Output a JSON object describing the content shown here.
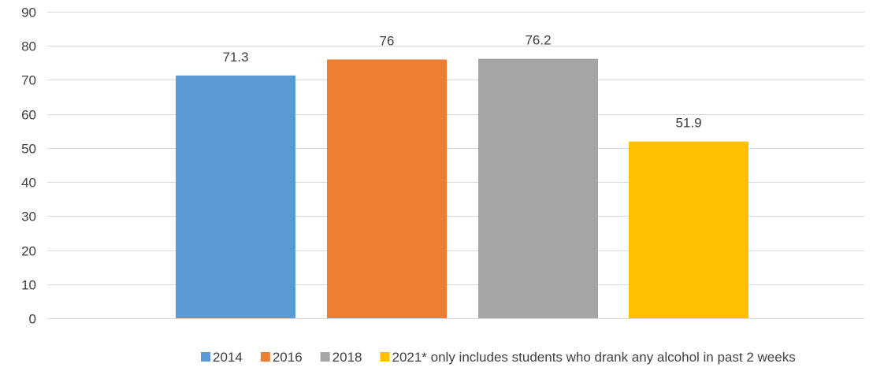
{
  "chart_data": {
    "type": "bar",
    "title": "",
    "xlabel": "",
    "ylabel": "",
    "ylim": [
      0,
      90
    ],
    "yticks": [
      0,
      10,
      20,
      30,
      40,
      50,
      60,
      70,
      80,
      90
    ],
    "grid": true,
    "legend_position": "bottom",
    "series": [
      {
        "name": "2014",
        "value": 71.3,
        "label": "71.3",
        "color": "#5B9BD5"
      },
      {
        "name": "2016",
        "value": 76,
        "label": "76",
        "color": "#ED7D31"
      },
      {
        "name": "2018",
        "value": 76.2,
        "label": "76.2",
        "color": "#A5A5A5"
      },
      {
        "name": "2021* only includes students who drank any alcohol in past 2 weeks",
        "value": 51.9,
        "label": "51.9",
        "color": "#FFC000"
      }
    ]
  }
}
